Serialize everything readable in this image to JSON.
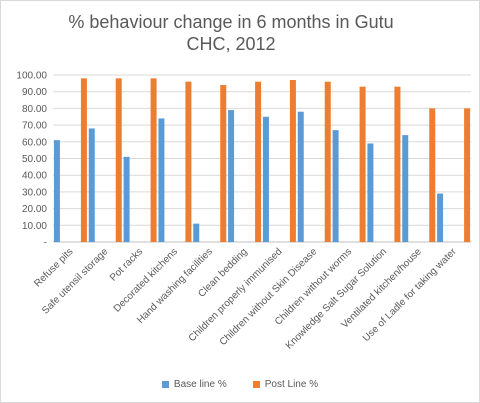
{
  "chart_data": {
    "type": "bar",
    "title": "% behaviour change in 6 months in Gutu CHC, 2012",
    "categories": [
      "Refuse pits",
      "Safe utensil storage",
      "Pot racks",
      "Decorated kitchens",
      "Hand washing facilities",
      "Clean bedding",
      "Children properly immunised",
      "Children without Skin Disease",
      "Children without worms",
      "Knowledge Salt Sugar Solution",
      "Ventilated kitchen/house",
      "Use of Ladle for taking water"
    ],
    "series": [
      {
        "name": "Base line %",
        "color": "#5b9bd5",
        "values": [
          61,
          68,
          51,
          74,
          11,
          79,
          75,
          78,
          67,
          59,
          64,
          29
        ]
      },
      {
        "name": "Post Line %",
        "color": "#ed7d31",
        "values": [
          98,
          98,
          98,
          96,
          94,
          96,
          97,
          96,
          93,
          93,
          80,
          80
        ]
      }
    ],
    "ylim": [
      0,
      100
    ],
    "yticks": [
      "-",
      "10.00",
      "20.00",
      "30.00",
      "40.00",
      "50.00",
      "60.00",
      "70.00",
      "80.00",
      "90.00",
      "100.00"
    ],
    "grid": true,
    "legend_position": "bottom"
  }
}
